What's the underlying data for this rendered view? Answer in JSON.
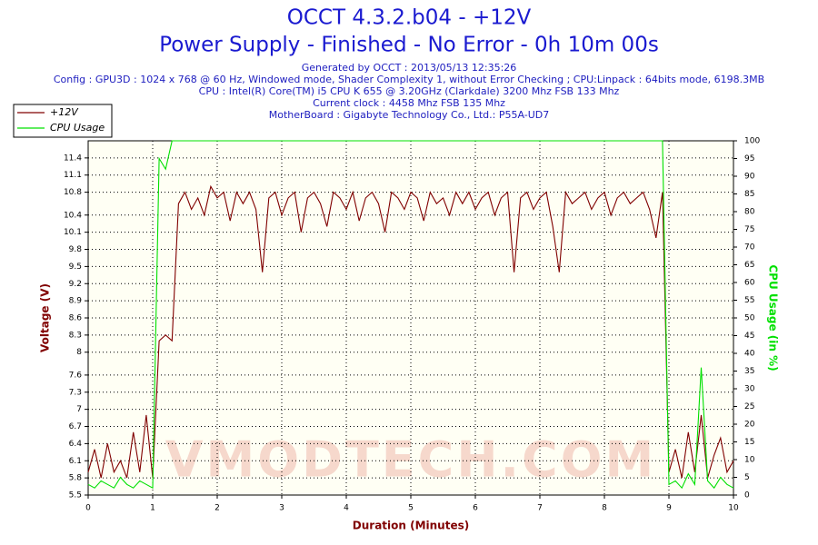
{
  "chart_data": {
    "type": "line",
    "title": "OCCT 4.3.2.b04 - +12V",
    "subtitle": "Power Supply - Finished - No Error - 0h 10m 00s",
    "info": [
      "Generated by OCCT : 2013/05/13 12:35:26",
      "Config : GPU3D : 1024 x 768 @ 60 Hz, Windowed mode, Shader Complexity 1, without Error Checking ; CPU:Linpack : 64bits mode, 6198.3MB",
      "CPU : Intel(R) Core(TM) i5 CPU K 655 @ 3.20GHz (Clarkdale) 3200 Mhz FSB 133 Mhz",
      "Current clock : 4458 Mhz FSB 135 Mhz",
      "MotherBoard : Gigabyte Technology Co., Ltd.: P55A-UD7"
    ],
    "watermark": "VMODTECH.COM",
    "xlabel": "Duration (Minutes)",
    "ylabel": "Voltage (V)",
    "y2label": "CPU Usage (in %)",
    "legend": "top-left",
    "grid": true,
    "xlim": [
      0,
      10
    ],
    "xticks": [
      0,
      1,
      2,
      3,
      4,
      5,
      6,
      7,
      8,
      9,
      10
    ],
    "ylim": [
      5.5,
      11.7
    ],
    "yticks": [
      5.5,
      5.8,
      6.1,
      6.4,
      6.7,
      7.0,
      7.3,
      7.6,
      8.0,
      8.3,
      8.6,
      8.9,
      9.2,
      9.5,
      9.8,
      10.1,
      10.4,
      10.8,
      11.1,
      11.4
    ],
    "y2lim": [
      0,
      100
    ],
    "y2ticks": [
      0,
      5,
      10,
      15,
      20,
      25,
      30,
      35,
      40,
      45,
      50,
      55,
      60,
      65,
      70,
      75,
      80,
      85,
      90,
      95,
      100
    ],
    "x": [
      0,
      0.1,
      0.2,
      0.3,
      0.4,
      0.5,
      0.6,
      0.7,
      0.8,
      0.9,
      1,
      1.1,
      1.2,
      1.3,
      1.4,
      1.5,
      1.6,
      1.7,
      1.8,
      1.9,
      2,
      2.1,
      2.2,
      2.3,
      2.4,
      2.5,
      2.6,
      2.7,
      2.8,
      2.9,
      3,
      3.1,
      3.2,
      3.3,
      3.4,
      3.5,
      3.6,
      3.7,
      3.8,
      3.9,
      4,
      4.1,
      4.2,
      4.3,
      4.4,
      4.5,
      4.6,
      4.7,
      4.8,
      4.9,
      5,
      5.1,
      5.2,
      5.3,
      5.4,
      5.5,
      5.6,
      5.7,
      5.8,
      5.9,
      6,
      6.1,
      6.2,
      6.3,
      6.4,
      6.5,
      6.6,
      6.7,
      6.8,
      6.9,
      7,
      7.1,
      7.2,
      7.3,
      7.4,
      7.5,
      7.6,
      7.7,
      7.8,
      7.9,
      8,
      8.1,
      8.2,
      8.3,
      8.4,
      8.5,
      8.6,
      8.7,
      8.8,
      8.9,
      9,
      9.1,
      9.2,
      9.3,
      9.4,
      9.5,
      9.6,
      9.7,
      9.8,
      9.9,
      10
    ],
    "series": [
      {
        "name": "+12V",
        "color": "#800000",
        "axis": "y",
        "values": [
          5.9,
          6.3,
          5.8,
          6.4,
          5.9,
          6.1,
          5.8,
          6.6,
          5.9,
          6.9,
          5.8,
          8.2,
          8.3,
          8.2,
          10.6,
          10.8,
          10.5,
          10.7,
          10.4,
          10.9,
          10.7,
          10.8,
          10.3,
          10.8,
          10.6,
          10.8,
          10.5,
          9.4,
          10.7,
          10.8,
          10.4,
          10.7,
          10.8,
          10.1,
          10.7,
          10.8,
          10.6,
          10.2,
          10.8,
          10.7,
          10.5,
          10.8,
          10.3,
          10.7,
          10.8,
          10.6,
          10.1,
          10.8,
          10.7,
          10.5,
          10.8,
          10.7,
          10.3,
          10.8,
          10.6,
          10.7,
          10.4,
          10.8,
          10.6,
          10.8,
          10.5,
          10.7,
          10.8,
          10.4,
          10.7,
          10.8,
          9.4,
          10.7,
          10.8,
          10.5,
          10.7,
          10.8,
          10.2,
          9.4,
          10.8,
          10.6,
          10.7,
          10.8,
          10.5,
          10.7,
          10.8,
          10.4,
          10.7,
          10.8,
          10.6,
          10.7,
          10.8,
          10.5,
          10.0,
          10.8,
          5.9,
          6.3,
          5.8,
          6.6,
          5.9,
          6.9,
          5.8,
          6.2,
          6.5,
          5.9,
          6.1
        ]
      },
      {
        "name": "CPU Usage",
        "color": "#00e000",
        "axis": "y2",
        "values": [
          3,
          2,
          4,
          3,
          2,
          5,
          3,
          2,
          4,
          3,
          2,
          95,
          92,
          100,
          100,
          100,
          100,
          100,
          100,
          100,
          100,
          100,
          100,
          100,
          100,
          100,
          100,
          100,
          100,
          100,
          100,
          100,
          100,
          100,
          100,
          100,
          100,
          100,
          100,
          100,
          100,
          100,
          100,
          100,
          100,
          100,
          100,
          100,
          100,
          100,
          100,
          100,
          100,
          100,
          100,
          100,
          100,
          100,
          100,
          100,
          100,
          100,
          100,
          100,
          100,
          100,
          100,
          100,
          100,
          100,
          100,
          100,
          100,
          100,
          100,
          100,
          100,
          100,
          100,
          100,
          100,
          100,
          100,
          100,
          100,
          100,
          100,
          100,
          100,
          100,
          3,
          4,
          2,
          6,
          3,
          36,
          4,
          2,
          5,
          3,
          2
        ]
      }
    ]
  }
}
